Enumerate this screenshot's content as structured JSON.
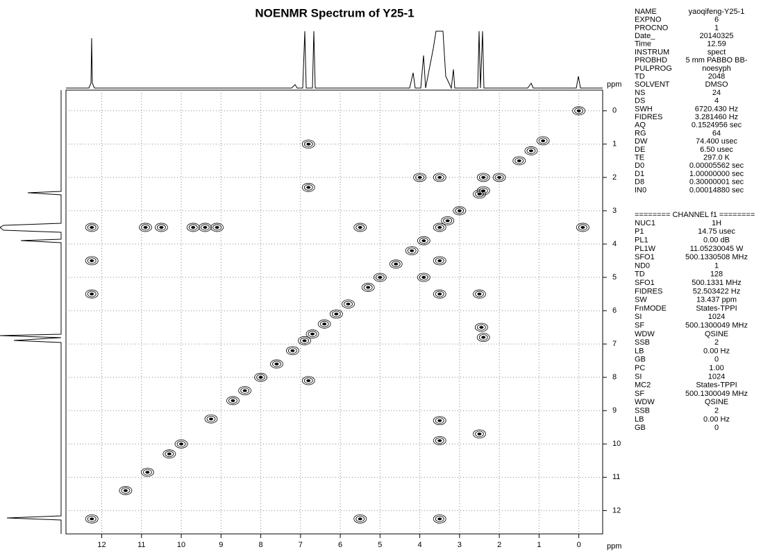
{
  "chart_data": {
    "type": "contour",
    "title": "NOENMR Spectrum of Y25-1",
    "x_label": "ppm",
    "y_label": "ppm",
    "xlim": [
      12.9,
      -0.6
    ],
    "ylim": [
      -0.62,
      12.7
    ],
    "xticks": [
      12,
      11,
      10,
      9,
      8,
      7,
      6,
      5,
      4,
      3,
      2,
      1,
      0
    ],
    "yticks": [
      0,
      1,
      2,
      3,
      4,
      5,
      6,
      7,
      8,
      9,
      10,
      11,
      12
    ],
    "grid": true,
    "color": "#000000",
    "x": [
      0,
      0.9,
      1.2,
      1.5,
      2.0,
      2.4,
      2.5,
      3.0,
      3.3,
      3.5,
      3.9,
      4.2,
      4.6,
      5.0,
      5.3,
      5.8,
      6.1,
      6.4,
      6.7,
      6.9,
      7.2,
      7.6,
      8.0,
      8.4,
      8.7,
      12.25,
      12.25,
      12.25,
      3.5,
      5.5,
      12.25,
      5.5,
      10.9,
      10.5,
      9.7,
      9.4,
      9.1,
      3.5,
      3.5,
      3.5,
      2.45,
      2.4,
      6.8,
      6.8,
      6.8,
      -0.1,
      3.5,
      2.5,
      3.5,
      10.0,
      10.3,
      10.85,
      11.4,
      9.25,
      2.4,
      2.5,
      3.9,
      4.0
    ],
    "values": [
      0,
      0.9,
      1.2,
      1.5,
      2.0,
      2.4,
      2.5,
      3.0,
      3.3,
      3.5,
      3.9,
      4.2,
      4.6,
      5.0,
      5.3,
      5.8,
      6.1,
      6.4,
      6.7,
      6.9,
      7.2,
      7.6,
      8.0,
      8.4,
      8.7,
      3.5,
      4.5,
      5.5,
      12.25,
      12.25,
      12.25,
      3.5,
      3.5,
      3.5,
      3.5,
      3.5,
      3.5,
      2.0,
      4.5,
      5.5,
      6.5,
      2.0,
      2.3,
      8.1,
      1.0,
      3.5,
      9.3,
      9.7,
      9.9,
      10.0,
      10.3,
      10.85,
      11.4,
      9.25,
      6.8,
      5.5,
      5.0,
      2.0
    ]
  },
  "parameters": {
    "acquisition": [
      {
        "label": "NAME",
        "value": "yaoqifeng-Y25-1"
      },
      {
        "label": "EXPNO",
        "value": "6"
      },
      {
        "label": "PROCNO",
        "value": "1"
      },
      {
        "label": "Date_",
        "value": "20140325"
      },
      {
        "label": "Time",
        "value": "12.59"
      },
      {
        "label": "INSTRUM",
        "value": "spect"
      },
      {
        "label": "PROBHD",
        "value": "5 mm PABBO BB-"
      },
      {
        "label": "PULPROG",
        "value": "noesyph"
      },
      {
        "label": "TD",
        "value": "2048"
      },
      {
        "label": "SOLVENT",
        "value": "DMSO"
      },
      {
        "label": "NS",
        "value": "24"
      },
      {
        "label": "DS",
        "value": "4"
      },
      {
        "label": "SWH",
        "value": "6720.430 Hz"
      },
      {
        "label": "FIDRES",
        "value": "3.281460 Hz"
      },
      {
        "label": "AQ",
        "value": "0.1524956 sec"
      },
      {
        "label": "RG",
        "value": "64"
      },
      {
        "label": "DW",
        "value": "74.400 usec"
      },
      {
        "label": "DE",
        "value": "6.50 usec"
      },
      {
        "label": "TE",
        "value": "297.0 K"
      },
      {
        "label": "D0",
        "value": "0.00005562 sec"
      },
      {
        "label": "D1",
        "value": "1.00000000 sec"
      },
      {
        "label": "D8",
        "value": "0.30000001 sec"
      },
      {
        "label": "IN0",
        "value": "0.00014880 sec"
      }
    ],
    "channel_header": "======== CHANNEL f1 ========",
    "channel": [
      {
        "label": "NUC1",
        "value": "1H"
      },
      {
        "label": "P1",
        "value": "14.75 usec"
      },
      {
        "label": "PL1",
        "value": "0.00 dB"
      },
      {
        "label": "PL1W",
        "value": "11.05230045 W"
      },
      {
        "label": "SFO1",
        "value": "500.1330508 MHz"
      },
      {
        "label": "ND0",
        "value": "1"
      },
      {
        "label": "TD",
        "value": "128"
      },
      {
        "label": "SFO1",
        "value": "500.1331 MHz"
      },
      {
        "label": "FIDRES",
        "value": "52.503422 Hz"
      },
      {
        "label": "SW",
        "value": "13.437 ppm"
      },
      {
        "label": "FnMODE",
        "value": "States-TPPI"
      },
      {
        "label": "SI",
        "value": "1024"
      },
      {
        "label": "SF",
        "value": "500.1300049 MHz"
      },
      {
        "label": "WDW",
        "value": "QSINE"
      },
      {
        "label": "SSB",
        "value": "2"
      },
      {
        "label": "LB",
        "value": "0.00 Hz"
      },
      {
        "label": "GB",
        "value": "0"
      },
      {
        "label": "PC",
        "value": "1.00"
      },
      {
        "label": "SI",
        "value": "1024"
      },
      {
        "label": "MC2",
        "value": "States-TPPI"
      },
      {
        "label": "SF",
        "value": "500.1300049 MHz"
      },
      {
        "label": "WDW",
        "value": "QSINE"
      },
      {
        "label": "SSB",
        "value": "2"
      },
      {
        "label": "LB",
        "value": "0.00 Hz"
      },
      {
        "label": "GB",
        "value": "0"
      }
    ]
  }
}
